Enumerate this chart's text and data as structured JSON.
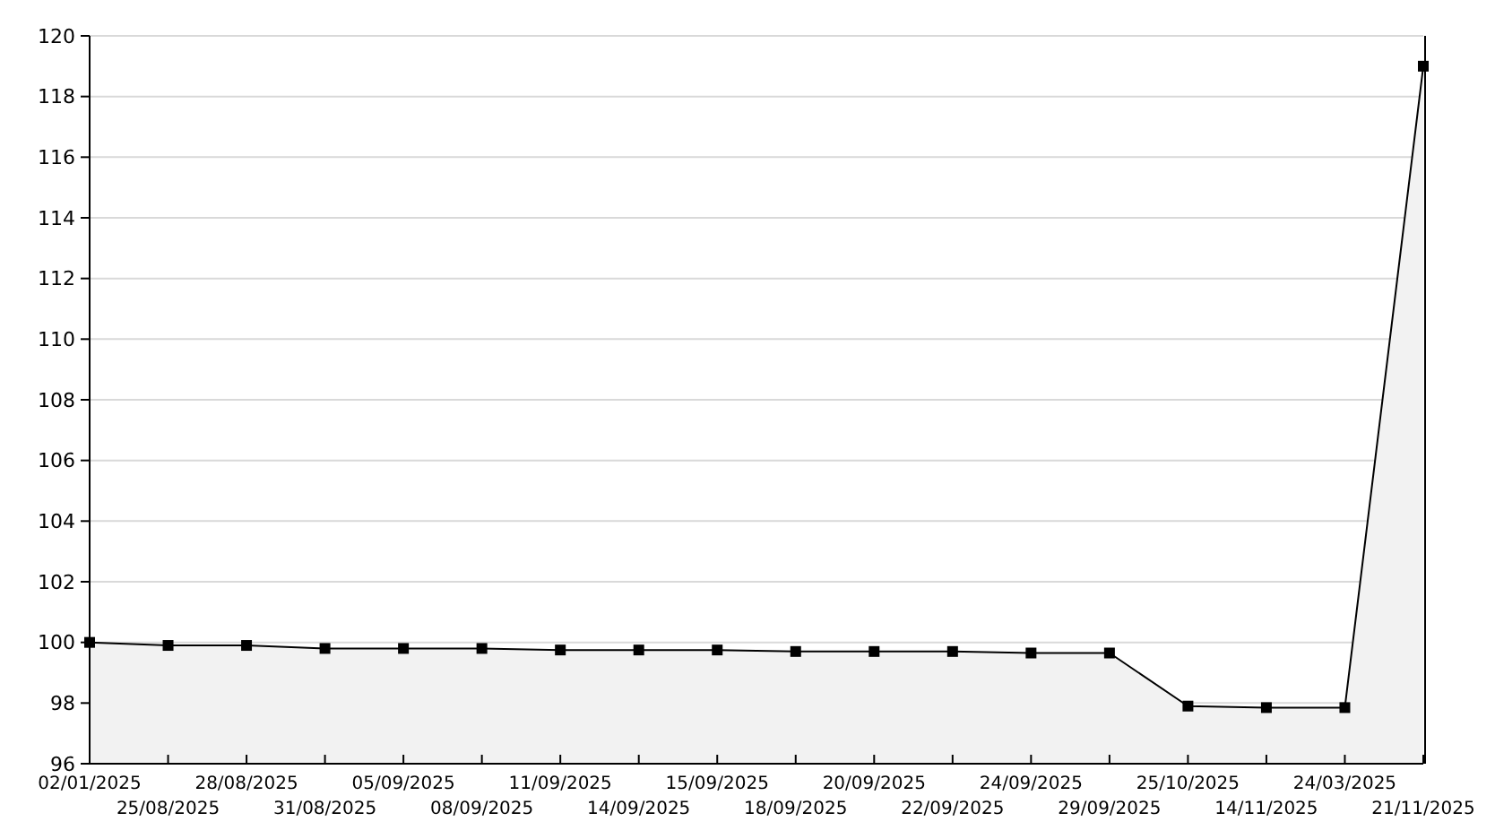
{
  "chart_data": {
    "type": "area",
    "categories": [
      "02/01/2025",
      "25/08/2025",
      "28/08/2025",
      "31/08/2025",
      "05/09/2025",
      "08/09/2025",
      "11/09/2025",
      "14/09/2025",
      "15/09/2025",
      "18/09/2025",
      "20/09/2025",
      "22/09/2025",
      "24/09/2025",
      "29/09/2025",
      "25/10/2025",
      "14/11/2025",
      "24/03/2025",
      "21/11/2025"
    ],
    "series": [
      {
        "color": "#000000",
        "values": [
          100,
          99.9,
          99.9,
          99.8,
          99.8,
          99.8,
          99.75,
          99.75,
          99.75,
          99.7,
          99.7,
          99.7,
          99.65,
          99.65,
          97.9,
          97.85,
          97.85,
          119
        ]
      }
    ],
    "ylim": [
      96,
      120
    ],
    "yticks": [
      96,
      98,
      100,
      102,
      104,
      106,
      108,
      110,
      112,
      114,
      116,
      118,
      120
    ],
    "grid": "y",
    "marker": "square",
    "line_style": "solid"
  }
}
